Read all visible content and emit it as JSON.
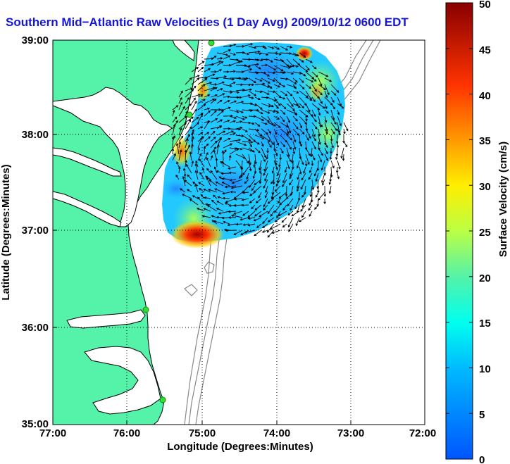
{
  "title": "Southern Mid−Atlantic Raw Velocities (1 Day Avg) 2009/10/12 0600 EDT",
  "axes": {
    "xlabel": "Longitude (Degrees:Minutes)",
    "ylabel": "Latitude (Degrees:Minutes)",
    "x_ticks": [
      "77:00",
      "76:00",
      "75:00",
      "74:00",
      "73:00",
      "72:00"
    ],
    "y_ticks": [
      "39:00",
      "38:00",
      "37:00",
      "36:00",
      "35:00"
    ],
    "xlim": [
      -77,
      -72
    ],
    "ylim": [
      35,
      39
    ],
    "grid": true
  },
  "colorbar": {
    "label": "Surface Velocity (cm/s)",
    "ticks": [
      "50",
      "45",
      "40",
      "35",
      "30",
      "25",
      "20",
      "15",
      "10",
      "5",
      "0"
    ],
    "range": [
      0,
      50
    ],
    "units": "cm/s"
  },
  "colors": {
    "land": "#55f2a9",
    "coast_line": "#000000",
    "bathymetry": "#888888",
    "title": "#1515d8",
    "station": "#33dd33"
  },
  "stations_note_icon": "green-circle-icon"
}
